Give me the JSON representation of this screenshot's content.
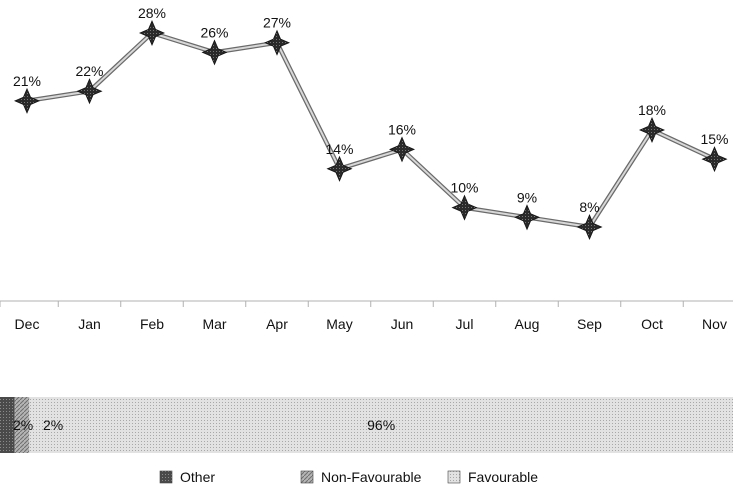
{
  "chart_data": [
    {
      "type": "line",
      "categories": [
        "Dec",
        "Jan",
        "Feb",
        "Mar",
        "Apr",
        "May",
        "Jun",
        "Jul",
        "Aug",
        "Sep",
        "Oct",
        "Nov"
      ],
      "series": [
        {
          "values": [
            21,
            22,
            28,
            26,
            27,
            14,
            16,
            10,
            9,
            8,
            18,
            15
          ],
          "labels": [
            "21%",
            "22%",
            "28%",
            "26%",
            "27%",
            "14%",
            "16%",
            "10%",
            "9%",
            "8%",
            "18%",
            "15%"
          ]
        }
      ],
      "unit": "%",
      "grid": false,
      "colors": {
        "line": "#555555",
        "marker": "#222222",
        "axis": "#b0b0b0"
      }
    },
    {
      "type": "bar",
      "orientation": "horizontal",
      "stacked": true,
      "series": [
        {
          "name": "Other",
          "values": [
            2
          ],
          "label": "2%",
          "color": "#555555"
        },
        {
          "name": "Non-Favourable",
          "values": [
            2
          ],
          "label": "2%",
          "color": "#9a9a9a"
        },
        {
          "name": "Favourable",
          "values": [
            96
          ],
          "label": "96%",
          "color": "#d0d0d0"
        }
      ],
      "legend": "bottom"
    }
  ]
}
